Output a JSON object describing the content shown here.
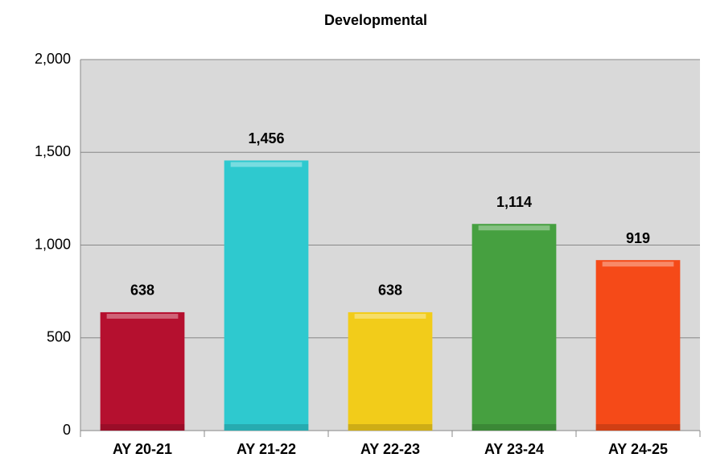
{
  "chart_data": {
    "type": "bar",
    "title": "Developmental",
    "categories": [
      "AY 20-21",
      "AY 21-22",
      "AY 22-23",
      "AY 23-24",
      "AY 24-25"
    ],
    "values": [
      638,
      1456,
      638,
      1114,
      919
    ],
    "value_labels": [
      "638",
      "1,456",
      "638",
      "1,114",
      "919"
    ],
    "colors": [
      "#b5102f",
      "#2ec9cf",
      "#f2cc1a",
      "#46a040",
      "#f54a18"
    ],
    "ylim": [
      0,
      2000
    ],
    "yticks": [
      0,
      500,
      {
        "value": 1000,
        "label": "1,000"
      },
      {
        "value": 1500,
        "label": "1,500"
      },
      {
        "value": 2000,
        "label": "2,000"
      }
    ],
    "grid": true
  }
}
